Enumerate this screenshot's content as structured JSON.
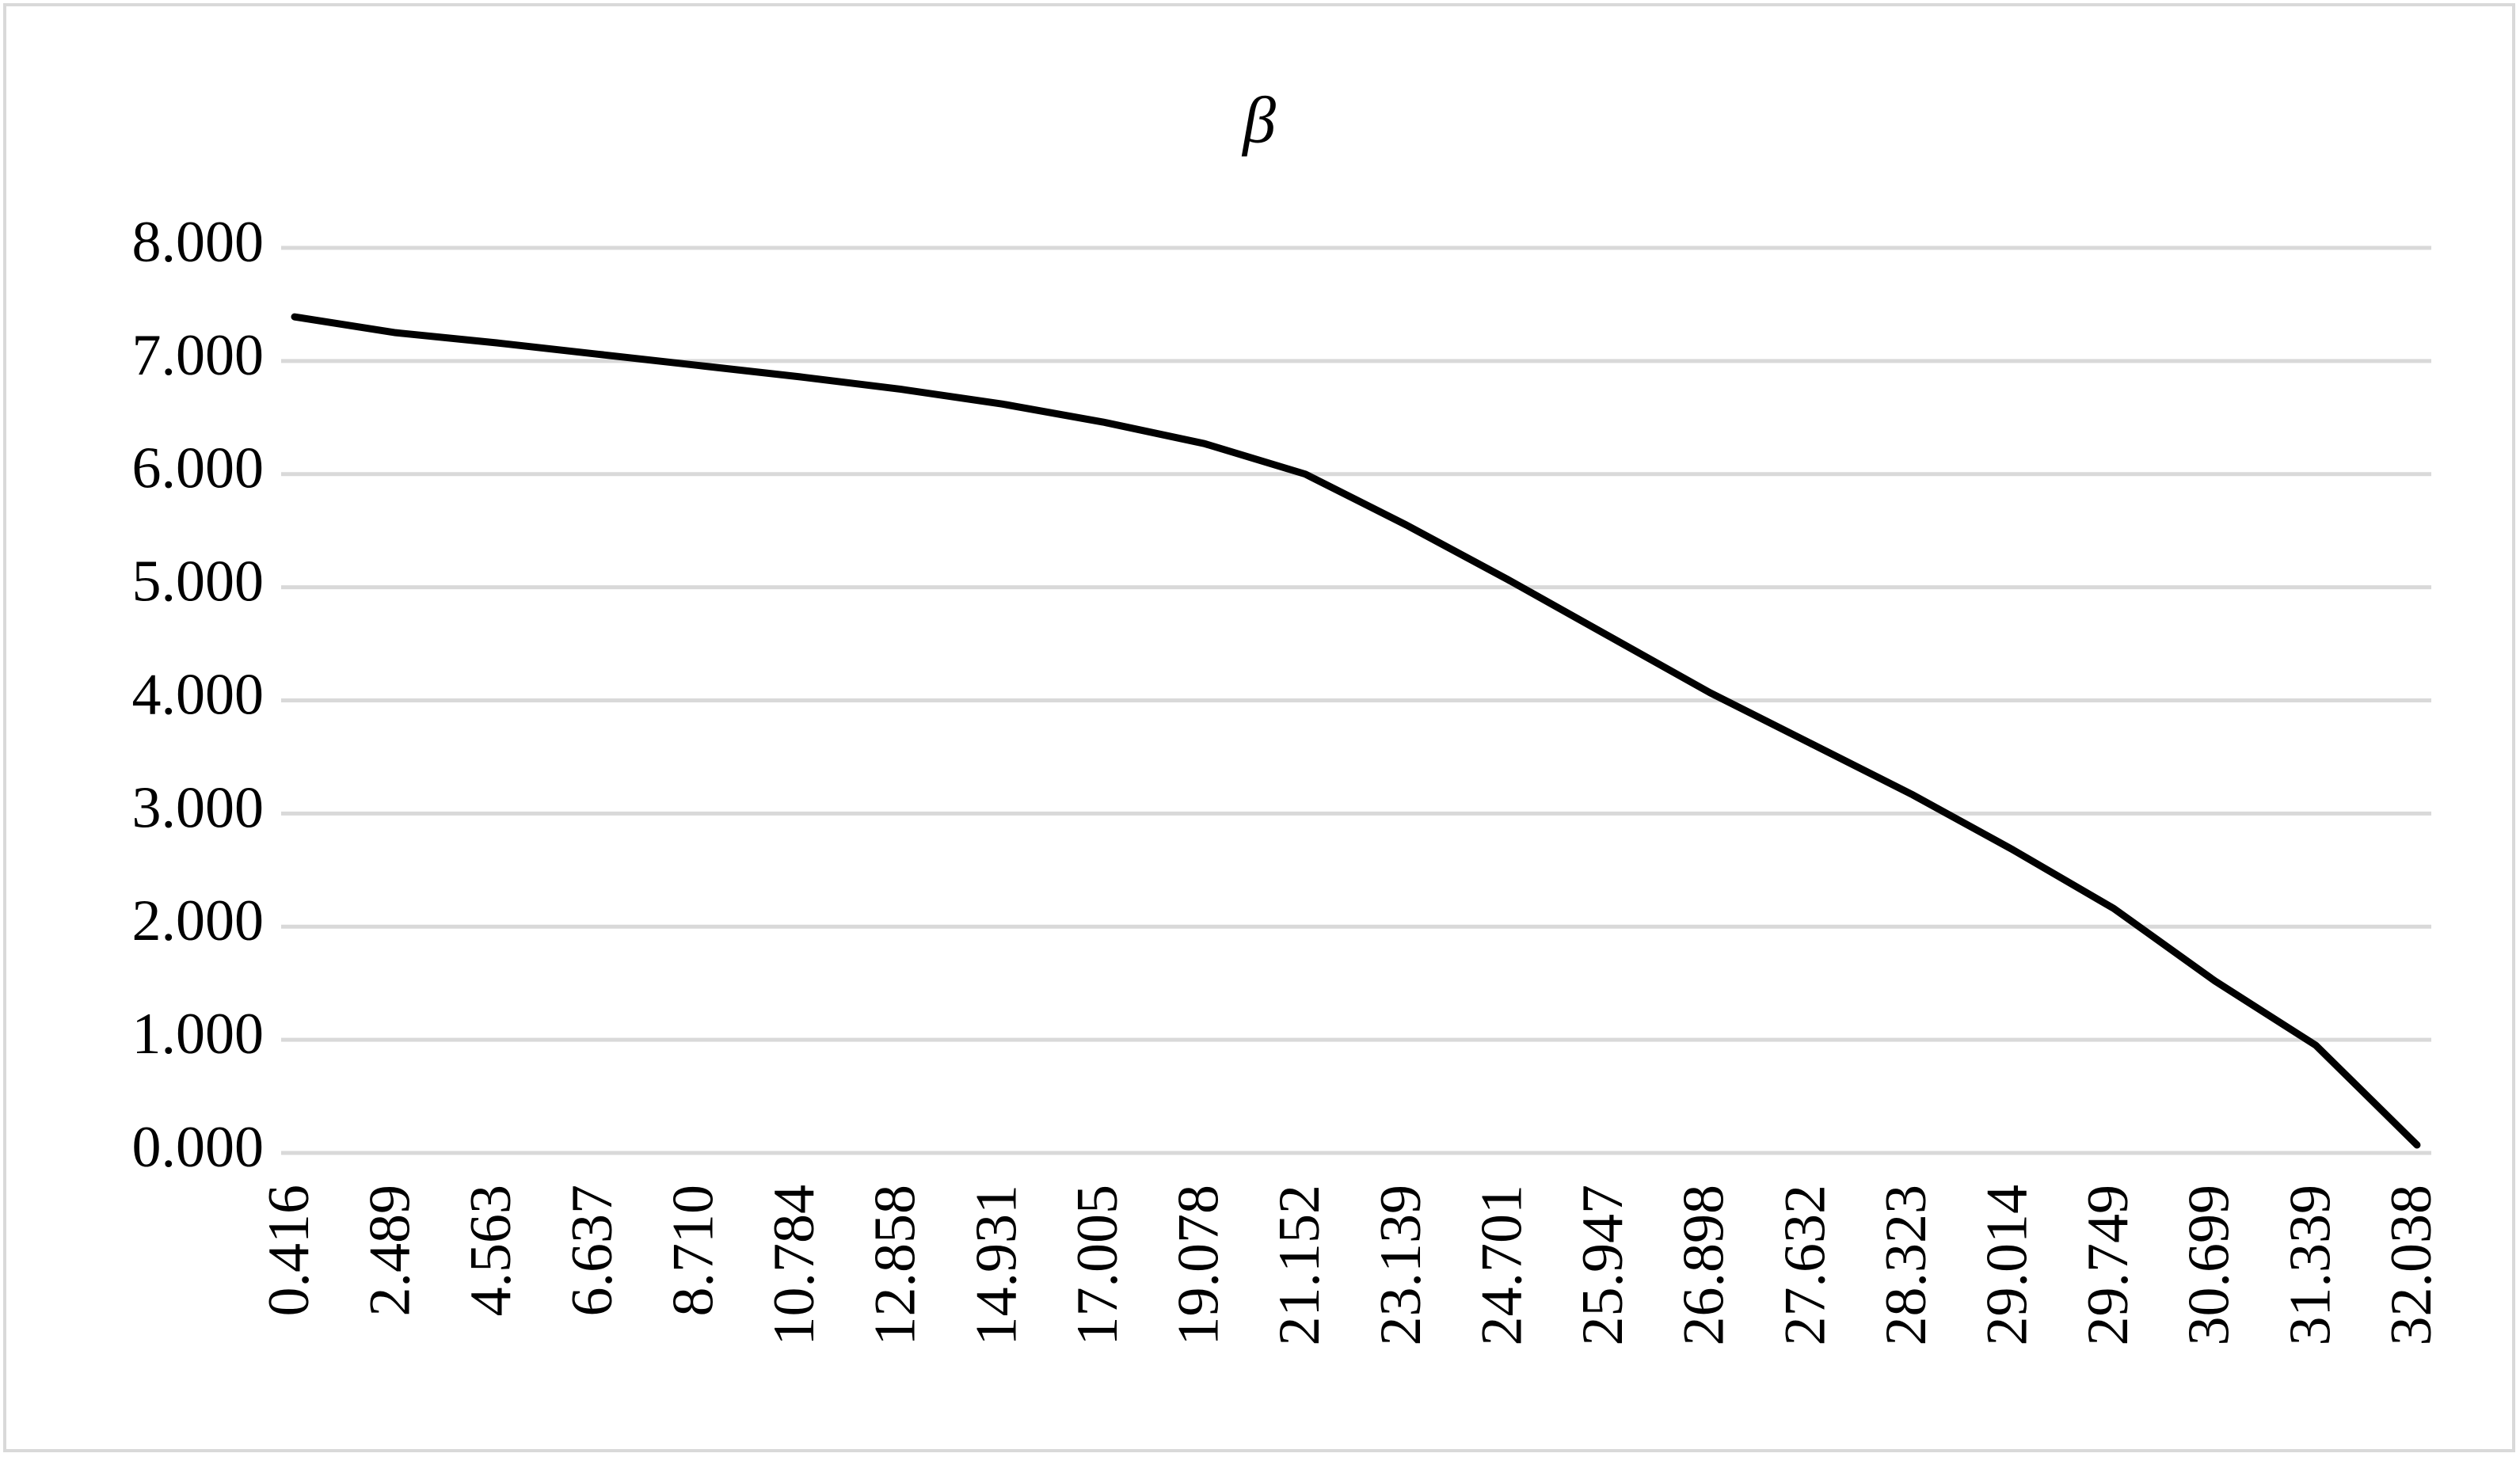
{
  "chart_data": {
    "type": "line",
    "title": "β",
    "categories": [
      "0.416",
      "2.489",
      "4.563",
      "6.637",
      "8.710",
      "10.784",
      "12.858",
      "14.931",
      "17.005",
      "19.078",
      "21.152",
      "23.139",
      "24.701",
      "25.947",
      "26.898",
      "27.632",
      "28.323",
      "29.014",
      "29.749",
      "30.699",
      "31.339",
      "32.038"
    ],
    "series": [
      {
        "color": "#000000",
        "values": [
          7.39,
          7.25,
          7.16,
          7.06,
          6.96,
          6.86,
          6.75,
          6.62,
          6.46,
          6.27,
          6.0,
          5.55,
          5.07,
          4.57,
          4.07,
          3.62,
          3.17,
          2.68,
          2.16,
          1.52,
          0.95,
          0.07
        ]
      }
    ],
    "ylim": [
      0,
      8
    ],
    "yticks": [
      {
        "value": 0,
        "label": "0.000"
      },
      {
        "value": 1,
        "label": "1.000"
      },
      {
        "value": 2,
        "label": "2.000"
      },
      {
        "value": 3,
        "label": "3.000"
      },
      {
        "value": 4,
        "label": "4.000"
      },
      {
        "value": 5,
        "label": "5.000"
      },
      {
        "value": 6,
        "label": "6.000"
      },
      {
        "value": 7,
        "label": "7.000"
      },
      {
        "value": 8,
        "label": "8.000"
      }
    ],
    "grid": true
  }
}
